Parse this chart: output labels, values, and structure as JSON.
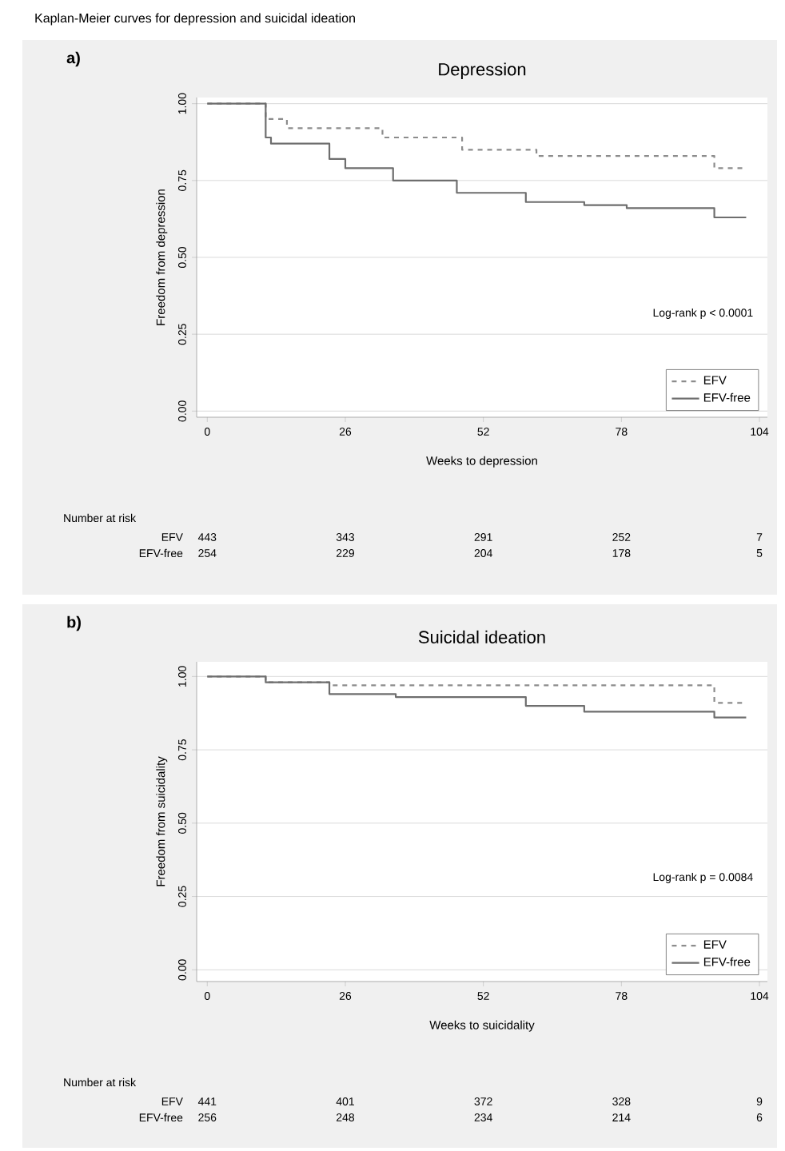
{
  "chart_data": [
    {
      "type": "step",
      "title": "Depression",
      "xlabel": "Weeks to depression",
      "ylabel": "Freedom from depression",
      "annotations": [
        "Kaplan-Meier curves for depression and suicidal ideation",
        "a)",
        "Log-rank p < 0.0001",
        "Number at risk",
        "EFV",
        "443",
        "343",
        "291",
        "252",
        "7",
        "EFV-free",
        "254",
        "229",
        "204",
        "178",
        "5"
      ],
      "xlim": [
        -2,
        105.5
      ],
      "ylim": [
        -0.02,
        1.02
      ],
      "xticks": [
        0,
        26,
        52,
        78,
        104
      ],
      "yticks": [
        {
          "value": 0,
          "label": "0.00"
        },
        {
          "value": 0.25,
          "label": "0.25"
        },
        {
          "value": 0.5,
          "label": "0.50"
        },
        {
          "value": 0.75,
          "label": "0.75"
        },
        {
          "value": 1,
          "label": "1.00"
        }
      ],
      "grid": "y",
      "legend": "bottom right",
      "series": [
        {
          "name": "EFV",
          "color": "#8c8c8c",
          "line_style": "dashed",
          "x": [
            0,
            11,
            15,
            33,
            48,
            62,
            95.5,
            101.5
          ],
          "values": [
            1,
            0.95,
            0.92,
            0.89,
            0.85,
            0.83,
            0.79,
            0.79
          ]
        },
        {
          "name": "EFV-free",
          "color": "#6e6e6e",
          "line_style": "solid",
          "x": [
            0,
            11,
            12,
            23,
            26,
            35,
            47,
            60,
            71,
            79,
            95.5,
            101.5
          ],
          "values": [
            1,
            0.89,
            0.87,
            0.82,
            0.79,
            0.75,
            0.71,
            0.68,
            0.67,
            0.66,
            0.63,
            0.63
          ]
        }
      ]
    },
    {
      "type": "step",
      "title": "Suicidal ideation",
      "xlabel": "Weeks to suicidality",
      "ylabel": "Freedom from suicidality",
      "annotations": [
        "b)",
        "Log-rank p = 0.0084",
        "Number at risk",
        "EFV",
        "441",
        "401",
        "372",
        "328",
        "9",
        "EFV-free",
        "256",
        "248",
        "234",
        "214",
        "6"
      ],
      "xlim": [
        -2,
        105.5
      ],
      "ylim": [
        -0.04,
        1.05
      ],
      "xticks": [
        0,
        26,
        52,
        78,
        104
      ],
      "yticks": [
        {
          "value": 0,
          "label": "0.00"
        },
        {
          "value": 0.25,
          "label": "0.25"
        },
        {
          "value": 0.5,
          "label": "0.50"
        },
        {
          "value": 0.75,
          "label": "0.75"
        },
        {
          "value": 1,
          "label": "1.00"
        }
      ],
      "grid": "y",
      "legend": "bottom right",
      "series": [
        {
          "name": "EFV",
          "color": "#8c8c8c",
          "line_style": "dashed",
          "x": [
            0,
            11,
            23,
            95.5,
            101.5
          ],
          "values": [
            1,
            0.98,
            0.97,
            0.91,
            0.91
          ]
        },
        {
          "name": "EFV-free",
          "color": "#6e6e6e",
          "line_style": "solid",
          "x": [
            0,
            11,
            23,
            35.5,
            60,
            71,
            95.5,
            101.5
          ],
          "values": [
            1,
            0.98,
            0.94,
            0.93,
            0.9,
            0.88,
            0.86,
            0.86
          ]
        }
      ]
    }
  ]
}
